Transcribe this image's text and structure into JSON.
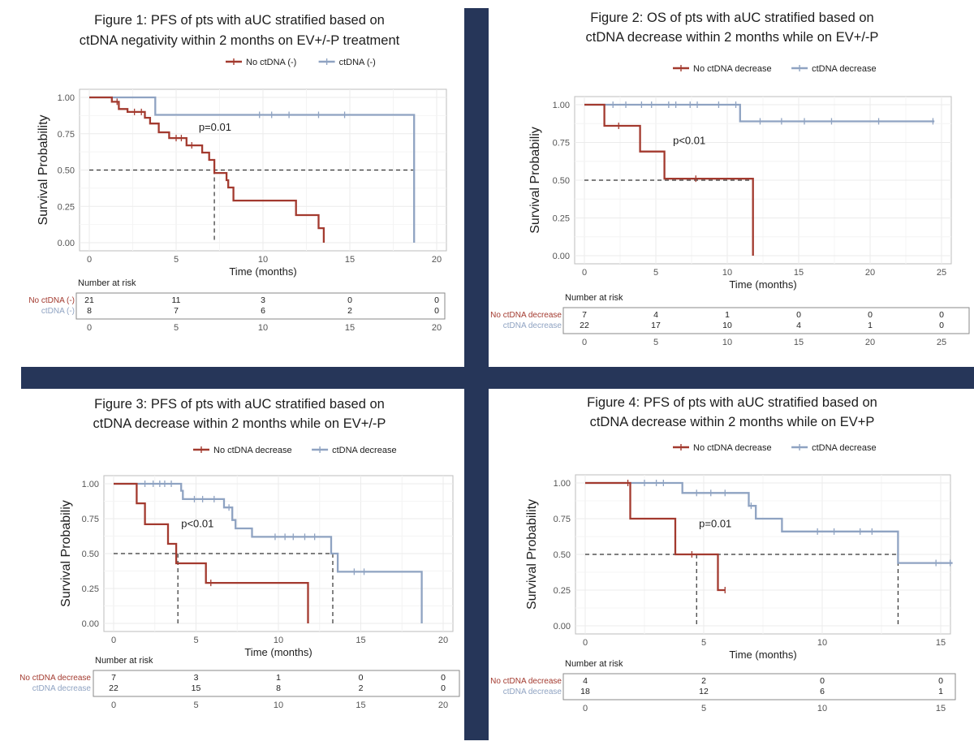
{
  "colors": {
    "no_ctdna": "#a33a2f",
    "ctdna": "#8fa3c2",
    "divider": "#263659"
  },
  "chart_data": [
    {
      "type": "line",
      "subtype": "kaplan-meier",
      "title_lines": [
        "Figure 1: PFS of pts with aUC stratified based on",
        "ctDNA negativity within 2 months on EV+/-P treatment"
      ],
      "xlabel": "Time (months)",
      "ylabel": "Survival Probability",
      "xlim": [
        0,
        20
      ],
      "ylim": [
        0,
        1
      ],
      "xticks": [
        "0",
        "5",
        "10",
        "15",
        "20"
      ],
      "yticks": [
        "0.00",
        "0.25",
        "0.50",
        "0.75",
        "1.00"
      ],
      "pvalue": {
        "text": "p=0.01",
        "x": 6.3,
        "y": 0.77
      },
      "median_lines": [
        7.2,
        18.7
      ],
      "series": [
        {
          "name": "No ctDNA (-)",
          "color_key": "no_ctdna",
          "steps": [
            [
              0,
              1
            ],
            [
              1.3,
              1
            ],
            [
              1.3,
              0.97
            ],
            [
              1.7,
              0.97
            ],
            [
              1.7,
              0.92
            ],
            [
              2.2,
              0.92
            ],
            [
              2.2,
              0.9
            ],
            [
              3.2,
              0.9
            ],
            [
              3.2,
              0.86
            ],
            [
              3.5,
              0.86
            ],
            [
              3.5,
              0.82
            ],
            [
              4.0,
              0.82
            ],
            [
              4.0,
              0.76
            ],
            [
              4.6,
              0.76
            ],
            [
              4.6,
              0.72
            ],
            [
              5.6,
              0.72
            ],
            [
              5.6,
              0.67
            ],
            [
              6.5,
              0.67
            ],
            [
              6.5,
              0.62
            ],
            [
              6.9,
              0.62
            ],
            [
              6.9,
              0.57
            ],
            [
              7.2,
              0.57
            ],
            [
              7.2,
              0.48
            ],
            [
              7.9,
              0.48
            ],
            [
              7.9,
              0.43
            ],
            [
              8.0,
              0.43
            ],
            [
              8.0,
              0.38
            ],
            [
              8.3,
              0.38
            ],
            [
              8.3,
              0.29
            ],
            [
              11.9,
              0.29
            ],
            [
              11.9,
              0.19
            ],
            [
              13.2,
              0.19
            ],
            [
              13.2,
              0.1
            ],
            [
              13.5,
              0.1
            ],
            [
              13.5,
              0.0
            ]
          ],
          "censors": [
            [
              1.6,
              0.97
            ],
            [
              2.6,
              0.9
            ],
            [
              3.0,
              0.9
            ],
            [
              5.0,
              0.72
            ],
            [
              5.3,
              0.72
            ],
            [
              5.9,
              0.67
            ]
          ]
        },
        {
          "name": "ctDNA (-)",
          "color_key": "ctdna",
          "steps": [
            [
              0,
              1
            ],
            [
              3.8,
              1
            ],
            [
              3.8,
              0.88
            ],
            [
              18.7,
              0.88
            ],
            [
              18.7,
              0.0
            ]
          ],
          "censors": [
            [
              9.8,
              0.88
            ],
            [
              10.5,
              0.88
            ],
            [
              11.5,
              0.88
            ],
            [
              13.2,
              0.88
            ],
            [
              14.7,
              0.88
            ]
          ]
        }
      ],
      "risk_table": {
        "title": "Number at risk",
        "x_ticks": [
          "0",
          "5",
          "10",
          "15",
          "20"
        ],
        "rows": [
          {
            "label": "No ctDNA (-)",
            "color_key": "no_ctdna",
            "values": [
              "21",
              "11",
              "3",
              "0",
              "0"
            ]
          },
          {
            "label": "ctDNA (-)",
            "color_key": "ctdna",
            "values": [
              "8",
              "7",
              "6",
              "2",
              "0"
            ]
          }
        ]
      }
    },
    {
      "type": "line",
      "subtype": "kaplan-meier",
      "title_lines": [
        "Figure 2: OS of pts with aUC stratified based on",
        "ctDNA decrease within 2 months while on EV+/-P"
      ],
      "xlabel": "Time (months)",
      "ylabel": "Survival Probabiliy",
      "xlim": [
        0,
        25
      ],
      "ylim": [
        0,
        1
      ],
      "xticks": [
        "0",
        "5",
        "10",
        "15",
        "20",
        "25"
      ],
      "yticks": [
        "0.00",
        "0.25",
        "0.50",
        "0.75",
        "1.00"
      ],
      "pvalue": {
        "text": "p<0.01",
        "x": 6.2,
        "y": 0.74
      },
      "median_lines": [
        11.8
      ],
      "series": [
        {
          "name": "No ctDNA decrease",
          "color_key": "no_ctdna",
          "steps": [
            [
              0,
              1
            ],
            [
              1.4,
              1
            ],
            [
              1.4,
              0.86
            ],
            [
              3.9,
              0.86
            ],
            [
              3.9,
              0.69
            ],
            [
              5.6,
              0.69
            ],
            [
              5.6,
              0.51
            ],
            [
              11.8,
              0.51
            ],
            [
              11.8,
              0.0
            ]
          ],
          "censors": [
            [
              2.4,
              0.86
            ],
            [
              7.8,
              0.51
            ]
          ]
        },
        {
          "name": "ctDNA decrease",
          "color_key": "ctdna",
          "steps": [
            [
              0,
              1
            ],
            [
              10.9,
              1
            ],
            [
              10.9,
              0.89
            ],
            [
              24.5,
              0.89
            ]
          ],
          "censors": [
            [
              2.0,
              1
            ],
            [
              2.9,
              1
            ],
            [
              4.0,
              1
            ],
            [
              4.7,
              1
            ],
            [
              5.9,
              1
            ],
            [
              6.4,
              1
            ],
            [
              7.4,
              1
            ],
            [
              7.9,
              1
            ],
            [
              9.4,
              1
            ],
            [
              10.6,
              1
            ],
            [
              12.3,
              0.89
            ],
            [
              13.8,
              0.89
            ],
            [
              15.4,
              0.89
            ],
            [
              17.3,
              0.89
            ],
            [
              20.6,
              0.89
            ],
            [
              24.4,
              0.89
            ]
          ]
        }
      ],
      "risk_table": {
        "title": "Number at risk",
        "x_ticks": [
          "0",
          "5",
          "10",
          "15",
          "20",
          "25"
        ],
        "rows": [
          {
            "label": "No ctDNA decrease",
            "color_key": "no_ctdna",
            "values": [
              "7",
              "4",
              "1",
              "0",
              "0",
              "0"
            ]
          },
          {
            "label": "ctDNA decrease",
            "color_key": "ctdna",
            "values": [
              "22",
              "17",
              "10",
              "4",
              "1",
              "0"
            ]
          }
        ]
      }
    },
    {
      "type": "line",
      "subtype": "kaplan-meier",
      "title_lines": [
        "Figure 3: PFS of pts with aUC stratified based on",
        "ctDNA decrease within 2 months while on EV+/-P"
      ],
      "xlabel": "Time (months)",
      "ylabel": "Survival Probabiliy",
      "xlim": [
        0,
        20
      ],
      "ylim": [
        0,
        1
      ],
      "xticks": [
        "0",
        "5",
        "10",
        "15",
        "20"
      ],
      "yticks": [
        "0.00",
        "0.25",
        "0.50",
        "0.75",
        "1.00"
      ],
      "pvalue": {
        "text": "p<0.01",
        "x": 4.1,
        "y": 0.69
      },
      "median_lines": [
        3.9,
        13.3
      ],
      "series": [
        {
          "name": "No ctDNA decrease",
          "color_key": "no_ctdna",
          "steps": [
            [
              0,
              1
            ],
            [
              1.4,
              1
            ],
            [
              1.4,
              0.86
            ],
            [
              1.9,
              0.86
            ],
            [
              1.9,
              0.71
            ],
            [
              3.3,
              0.71
            ],
            [
              3.3,
              0.57
            ],
            [
              3.8,
              0.57
            ],
            [
              3.8,
              0.43
            ],
            [
              5.6,
              0.43
            ],
            [
              5.6,
              0.29
            ],
            [
              11.8,
              0.29
            ],
            [
              11.8,
              0.0
            ]
          ],
          "censors": [
            [
              5.9,
              0.29
            ]
          ]
        },
        {
          "name": "ctDNA decrease",
          "color_key": "ctdna",
          "steps": [
            [
              0,
              1
            ],
            [
              4.1,
              1
            ],
            [
              4.1,
              0.95
            ],
            [
              4.2,
              0.95
            ],
            [
              4.2,
              0.89
            ],
            [
              6.7,
              0.89
            ],
            [
              6.7,
              0.83
            ],
            [
              7.2,
              0.83
            ],
            [
              7.2,
              0.74
            ],
            [
              7.4,
              0.74
            ],
            [
              7.4,
              0.68
            ],
            [
              8.4,
              0.68
            ],
            [
              8.4,
              0.62
            ],
            [
              13.2,
              0.62
            ],
            [
              13.2,
              0.5
            ],
            [
              13.6,
              0.5
            ],
            [
              13.6,
              0.37
            ],
            [
              18.7,
              0.37
            ],
            [
              18.7,
              0.0
            ]
          ],
          "censors": [
            [
              1.9,
              1
            ],
            [
              2.4,
              1
            ],
            [
              2.8,
              1
            ],
            [
              3.1,
              1
            ],
            [
              3.5,
              1
            ],
            [
              4.9,
              0.89
            ],
            [
              5.4,
              0.89
            ],
            [
              6.1,
              0.89
            ],
            [
              7.0,
              0.83
            ],
            [
              9.8,
              0.62
            ],
            [
              10.4,
              0.62
            ],
            [
              10.9,
              0.62
            ],
            [
              11.6,
              0.62
            ],
            [
              12.2,
              0.62
            ],
            [
              14.6,
              0.37
            ],
            [
              15.2,
              0.37
            ]
          ]
        }
      ],
      "risk_table": {
        "title": "Number at risk",
        "x_ticks": [
          "0",
          "5",
          "10",
          "15",
          "20"
        ],
        "rows": [
          {
            "label": "No ctDNA decrease",
            "color_key": "no_ctdna",
            "values": [
              "7",
              "3",
              "1",
              "0",
              "0"
            ]
          },
          {
            "label": "ctDNA decrease",
            "color_key": "ctdna",
            "values": [
              "22",
              "15",
              "8",
              "2",
              "0"
            ]
          }
        ]
      }
    },
    {
      "type": "line",
      "subtype": "kaplan-meier",
      "title_lines": [
        "Figure 4: PFS of pts with aUC stratified based on",
        "ctDNA decrease within 2 months while on EV+P"
      ],
      "xlabel": "Time (months)",
      "ylabel": "Survival Probability",
      "xlim": [
        0,
        15
      ],
      "ylim": [
        0,
        1
      ],
      "xticks": [
        "0",
        "5",
        "10",
        "15"
      ],
      "yticks": [
        "0.00",
        "0.25",
        "0.50",
        "0.75",
        "1.00"
      ],
      "pvalue": {
        "text": "p=0.01",
        "x": 4.8,
        "y": 0.69
      },
      "median_lines": [
        4.7,
        13.2
      ],
      "series": [
        {
          "name": "No ctDNA decrease",
          "color_key": "no_ctdna",
          "steps": [
            [
              0,
              1
            ],
            [
              1.9,
              1
            ],
            [
              1.9,
              0.75
            ],
            [
              3.8,
              0.75
            ],
            [
              3.8,
              0.5
            ],
            [
              5.6,
              0.5
            ],
            [
              5.6,
              0.25
            ],
            [
              5.9,
              0.25
            ]
          ],
          "censors": [
            [
              1.8,
              1
            ],
            [
              4.5,
              0.5
            ],
            [
              5.9,
              0.25
            ]
          ]
        },
        {
          "name": "ctDNA decrease",
          "color_key": "ctdna",
          "steps": [
            [
              0,
              1
            ],
            [
              4.1,
              1
            ],
            [
              4.1,
              0.93
            ],
            [
              6.9,
              0.93
            ],
            [
              6.9,
              0.84
            ],
            [
              7.2,
              0.84
            ],
            [
              7.2,
              0.75
            ],
            [
              8.3,
              0.75
            ],
            [
              8.3,
              0.66
            ],
            [
              13.2,
              0.66
            ],
            [
              13.2,
              0.44
            ],
            [
              15.5,
              0.44
            ]
          ],
          "censors": [
            [
              2.5,
              1
            ],
            [
              3.0,
              1
            ],
            [
              3.3,
              1
            ],
            [
              4.7,
              0.93
            ],
            [
              5.3,
              0.93
            ],
            [
              5.9,
              0.93
            ],
            [
              7.0,
              0.84
            ],
            [
              9.8,
              0.66
            ],
            [
              10.5,
              0.66
            ],
            [
              11.6,
              0.66
            ],
            [
              12.1,
              0.66
            ],
            [
              14.8,
              0.44
            ],
            [
              15.4,
              0.44
            ]
          ]
        }
      ],
      "risk_table": {
        "title": "Number at risk",
        "x_ticks": [
          "0",
          "5",
          "10",
          "15"
        ],
        "rows": [
          {
            "label": "No ctDNA decrease",
            "color_key": "no_ctdna",
            "values": [
              "4",
              "2",
              "0",
              "0"
            ]
          },
          {
            "label": "ctDNA decrease",
            "color_key": "ctdna",
            "values": [
              "18",
              "12",
              "6",
              "1"
            ]
          }
        ]
      }
    }
  ]
}
